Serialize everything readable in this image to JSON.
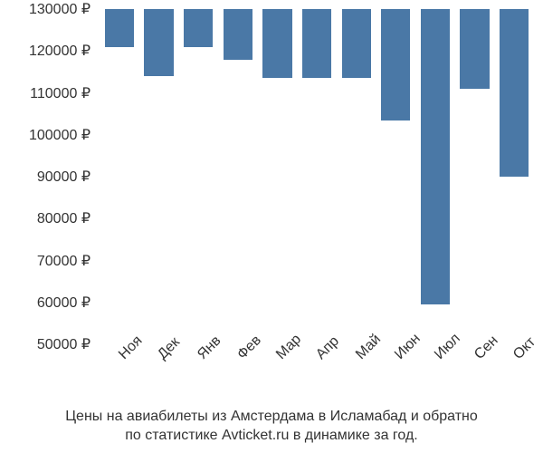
{
  "chart": {
    "type": "bar",
    "bar_color": "#4a78a6",
    "background_color": "#ffffff",
    "text_color": "#333333",
    "font_family": "Arial",
    "label_fontsize": 16,
    "caption_fontsize": 16,
    "currency": "₽",
    "y_axis": {
      "min": 50000,
      "max": 130000,
      "ticks": [
        50000,
        60000,
        70000,
        80000,
        90000,
        100000,
        110000,
        120000,
        130000
      ],
      "tick_labels": [
        "50000 ₽",
        "60000 ₽",
        "70000 ₽",
        "80000 ₽",
        "90000 ₽",
        "100000 ₽",
        "110000 ₽",
        "120000 ₽",
        "130000 ₽"
      ]
    },
    "x_labels": [
      "Ноя",
      "Дек",
      "Янв",
      "Фев",
      "Мар",
      "Апр",
      "Май",
      "Июн",
      "Июл",
      "Сен",
      "Окт"
    ],
    "values": [
      59000,
      66000,
      59000,
      62000,
      66500,
      66500,
      66500,
      76500,
      120500,
      69000,
      90000
    ],
    "bar_width_ratio": 0.74,
    "x_label_rotation": -45,
    "caption_line1": "Цены на авиабилеты из Амстердама в Исламабад и обратно",
    "caption_line2": "по статистике Avticket.ru в динамике за год."
  }
}
